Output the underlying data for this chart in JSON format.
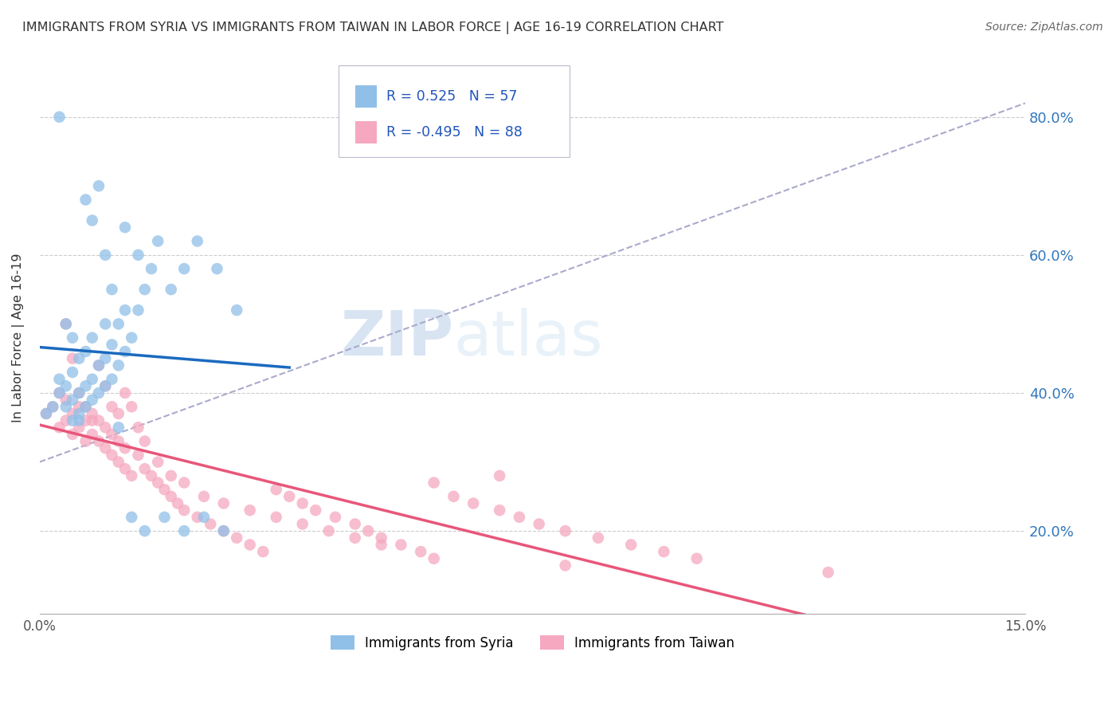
{
  "title": "IMMIGRANTS FROM SYRIA VS IMMIGRANTS FROM TAIWAN IN LABOR FORCE | AGE 16-19 CORRELATION CHART",
  "source": "Source: ZipAtlas.com",
  "ylabel": "In Labor Force | Age 16-19",
  "y_ticks": [
    "20.0%",
    "40.0%",
    "60.0%",
    "80.0%"
  ],
  "y_tick_vals": [
    0.2,
    0.4,
    0.6,
    0.8
  ],
  "xlim": [
    0.0,
    0.15
  ],
  "ylim": [
    0.08,
    0.88
  ],
  "legend_syria_R": "0.525",
  "legend_syria_N": "57",
  "legend_taiwan_R": "-0.495",
  "legend_taiwan_N": "88",
  "syria_color": "#90c0e8",
  "taiwan_color": "#f5a8c0",
  "syria_line_color": "#1a6abf",
  "taiwan_line_color": "#e8567a",
  "diagonal_color": "#aaaacc",
  "syria_scatter_x": [
    0.001,
    0.002,
    0.003,
    0.003,
    0.004,
    0.004,
    0.005,
    0.005,
    0.005,
    0.006,
    0.006,
    0.006,
    0.007,
    0.007,
    0.007,
    0.008,
    0.008,
    0.008,
    0.009,
    0.009,
    0.01,
    0.01,
    0.01,
    0.011,
    0.011,
    0.012,
    0.012,
    0.013,
    0.013,
    0.014,
    0.015,
    0.016,
    0.017,
    0.018,
    0.02,
    0.022,
    0.024,
    0.027,
    0.03,
    0.003,
    0.004,
    0.005,
    0.006,
    0.007,
    0.008,
    0.009,
    0.01,
    0.011,
    0.012,
    0.014,
    0.016,
    0.019,
    0.022,
    0.025,
    0.028,
    0.013,
    0.015
  ],
  "syria_scatter_y": [
    0.37,
    0.38,
    0.4,
    0.42,
    0.38,
    0.41,
    0.36,
    0.39,
    0.43,
    0.37,
    0.4,
    0.45,
    0.38,
    0.41,
    0.46,
    0.39,
    0.42,
    0.48,
    0.4,
    0.44,
    0.41,
    0.45,
    0.5,
    0.42,
    0.47,
    0.44,
    0.5,
    0.46,
    0.52,
    0.48,
    0.52,
    0.55,
    0.58,
    0.62,
    0.55,
    0.58,
    0.62,
    0.58,
    0.52,
    0.8,
    0.5,
    0.48,
    0.36,
    0.68,
    0.65,
    0.7,
    0.6,
    0.55,
    0.35,
    0.22,
    0.2,
    0.22,
    0.2,
    0.22,
    0.2,
    0.64,
    0.6
  ],
  "taiwan_scatter_x": [
    0.001,
    0.002,
    0.003,
    0.003,
    0.004,
    0.004,
    0.005,
    0.005,
    0.006,
    0.006,
    0.007,
    0.007,
    0.008,
    0.008,
    0.009,
    0.009,
    0.01,
    0.01,
    0.011,
    0.011,
    0.012,
    0.012,
    0.013,
    0.013,
    0.014,
    0.015,
    0.016,
    0.017,
    0.018,
    0.019,
    0.02,
    0.021,
    0.022,
    0.024,
    0.026,
    0.028,
    0.03,
    0.032,
    0.034,
    0.036,
    0.038,
    0.04,
    0.042,
    0.045,
    0.048,
    0.05,
    0.052,
    0.055,
    0.058,
    0.06,
    0.063,
    0.066,
    0.07,
    0.073,
    0.076,
    0.08,
    0.085,
    0.09,
    0.095,
    0.1,
    0.004,
    0.005,
    0.006,
    0.007,
    0.008,
    0.009,
    0.01,
    0.011,
    0.012,
    0.013,
    0.014,
    0.015,
    0.016,
    0.018,
    0.02,
    0.022,
    0.025,
    0.028,
    0.032,
    0.036,
    0.04,
    0.044,
    0.048,
    0.052,
    0.06,
    0.07,
    0.08,
    0.12
  ],
  "taiwan_scatter_y": [
    0.37,
    0.38,
    0.35,
    0.4,
    0.36,
    0.39,
    0.34,
    0.37,
    0.35,
    0.38,
    0.33,
    0.36,
    0.34,
    0.37,
    0.33,
    0.36,
    0.32,
    0.35,
    0.31,
    0.34,
    0.3,
    0.33,
    0.29,
    0.32,
    0.28,
    0.31,
    0.29,
    0.28,
    0.27,
    0.26,
    0.25,
    0.24,
    0.23,
    0.22,
    0.21,
    0.2,
    0.19,
    0.18,
    0.17,
    0.26,
    0.25,
    0.24,
    0.23,
    0.22,
    0.21,
    0.2,
    0.19,
    0.18,
    0.17,
    0.16,
    0.25,
    0.24,
    0.23,
    0.22,
    0.21,
    0.2,
    0.19,
    0.18,
    0.17,
    0.16,
    0.5,
    0.45,
    0.4,
    0.38,
    0.36,
    0.44,
    0.41,
    0.38,
    0.37,
    0.4,
    0.38,
    0.35,
    0.33,
    0.3,
    0.28,
    0.27,
    0.25,
    0.24,
    0.23,
    0.22,
    0.21,
    0.2,
    0.19,
    0.18,
    0.27,
    0.28,
    0.15,
    0.14
  ]
}
